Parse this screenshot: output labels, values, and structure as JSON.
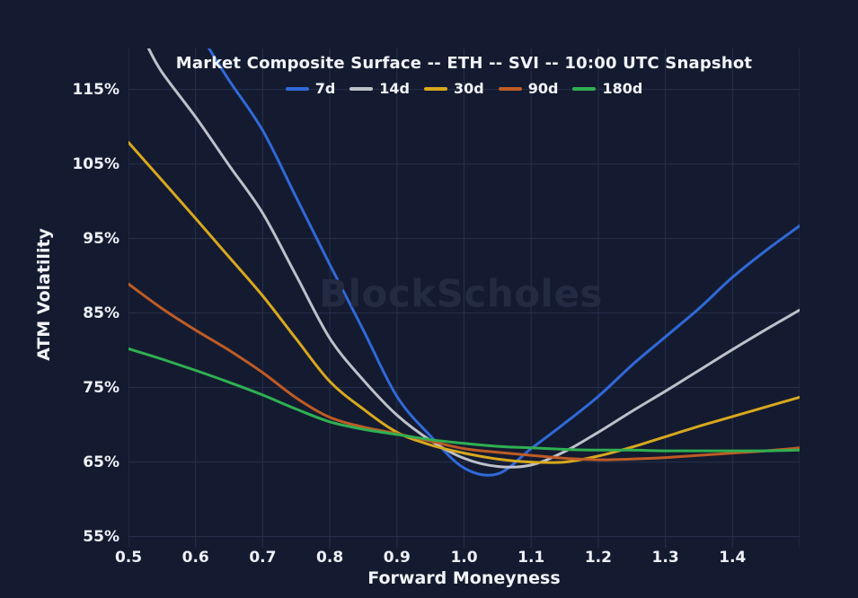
{
  "watermark": "BlockScholes",
  "colors": {
    "background": "#141b30",
    "grid": "#26304b",
    "tick_mark": "#3a4563",
    "text": "#f2f4f8",
    "watermark": "#222b41"
  },
  "chart_data": {
    "type": "line",
    "title": "Market Composite Surface -- ETH -- SVI -- 10:00 UTC Snapshot",
    "xlabel": "Forward Moneyness",
    "ylabel": "ATM Volatility",
    "xlim": [
      0.5,
      1.5
    ],
    "ylim": [
      53.5,
      120.5
    ],
    "grid": true,
    "legend_position": "top-center",
    "x_grid": [
      0.5,
      0.6,
      0.7,
      0.8,
      0.9,
      1.0,
      1.1,
      1.2,
      1.3,
      1.4,
      1.5
    ],
    "x_ticks": [
      {
        "value": 0.5,
        "label": "0.5"
      },
      {
        "value": 0.6,
        "label": "0.6"
      },
      {
        "value": 0.7,
        "label": "0.7"
      },
      {
        "value": 0.8,
        "label": "0.8"
      },
      {
        "value": 0.9,
        "label": "0.9"
      },
      {
        "value": 1.0,
        "label": "1.0"
      },
      {
        "value": 1.1,
        "label": "1.1"
      },
      {
        "value": 1.2,
        "label": "1.2"
      },
      {
        "value": 1.3,
        "label": "1.3"
      },
      {
        "value": 1.4,
        "label": "1.4"
      }
    ],
    "y_ticks": [
      {
        "value": 115,
        "label": "115%"
      },
      {
        "value": 105,
        "label": "105%"
      },
      {
        "value": 95,
        "label": "95%"
      },
      {
        "value": 85,
        "label": "85%"
      },
      {
        "value": 75,
        "label": "75%"
      },
      {
        "value": 65,
        "label": "65%"
      },
      {
        "value": 55,
        "label": "55%"
      }
    ],
    "series": [
      {
        "name": "7d",
        "color": "#3069d9",
        "points": [
          [
            0.62,
            120.5
          ],
          [
            0.65,
            116.2
          ],
          [
            0.7,
            109.5
          ],
          [
            0.75,
            100.5
          ],
          [
            0.8,
            91.5
          ],
          [
            0.85,
            82.7
          ],
          [
            0.9,
            73.8
          ],
          [
            0.95,
            68.5
          ],
          [
            1.0,
            64.2
          ],
          [
            1.05,
            63.4
          ],
          [
            1.1,
            66.8
          ],
          [
            1.15,
            70.2
          ],
          [
            1.2,
            73.8
          ],
          [
            1.25,
            78.0
          ],
          [
            1.3,
            81.8
          ],
          [
            1.35,
            85.6
          ],
          [
            1.4,
            89.8
          ],
          [
            1.45,
            93.4
          ],
          [
            1.5,
            96.7
          ]
        ]
      },
      {
        "name": "14d",
        "color": "#bdc1c9",
        "points": [
          [
            0.53,
            120.5
          ],
          [
            0.55,
            117.3
          ],
          [
            0.6,
            111.3
          ],
          [
            0.65,
            104.8
          ],
          [
            0.7,
            98.4
          ],
          [
            0.75,
            90.0
          ],
          [
            0.8,
            81.6
          ],
          [
            0.85,
            76.0
          ],
          [
            0.9,
            71.3
          ],
          [
            0.95,
            67.9
          ],
          [
            1.0,
            65.5
          ],
          [
            1.05,
            64.4
          ],
          [
            1.1,
            64.6
          ],
          [
            1.15,
            66.4
          ],
          [
            1.2,
            69.0
          ],
          [
            1.25,
            71.8
          ],
          [
            1.3,
            74.5
          ],
          [
            1.35,
            77.3
          ],
          [
            1.4,
            80.1
          ],
          [
            1.45,
            82.8
          ],
          [
            1.5,
            85.4
          ]
        ]
      },
      {
        "name": "30d",
        "color": "#d8a81e",
        "points": [
          [
            0.5,
            107.9
          ],
          [
            0.55,
            102.8
          ],
          [
            0.6,
            97.7
          ],
          [
            0.65,
            92.5
          ],
          [
            0.7,
            87.3
          ],
          [
            0.75,
            81.5
          ],
          [
            0.8,
            75.8
          ],
          [
            0.85,
            72.1
          ],
          [
            0.9,
            69.0
          ],
          [
            0.95,
            67.3
          ],
          [
            1.0,
            66.2
          ],
          [
            1.05,
            65.4
          ],
          [
            1.1,
            65.0
          ],
          [
            1.15,
            65.0
          ],
          [
            1.2,
            65.8
          ],
          [
            1.25,
            67.0
          ],
          [
            1.3,
            68.4
          ],
          [
            1.35,
            69.8
          ],
          [
            1.4,
            71.1
          ],
          [
            1.45,
            72.4
          ],
          [
            1.5,
            73.7
          ]
        ]
      },
      {
        "name": "90d",
        "color": "#bf5b24",
        "points": [
          [
            0.5,
            88.9
          ],
          [
            0.55,
            85.6
          ],
          [
            0.6,
            82.7
          ],
          [
            0.65,
            80.0
          ],
          [
            0.7,
            77.0
          ],
          [
            0.75,
            73.6
          ],
          [
            0.8,
            71.0
          ],
          [
            0.85,
            69.7
          ],
          [
            0.9,
            68.8
          ],
          [
            0.95,
            67.8
          ],
          [
            1.0,
            66.8
          ],
          [
            1.05,
            66.3
          ],
          [
            1.1,
            65.9
          ],
          [
            1.15,
            65.5
          ],
          [
            1.2,
            65.3
          ],
          [
            1.25,
            65.4
          ],
          [
            1.3,
            65.6
          ],
          [
            1.35,
            65.9
          ],
          [
            1.4,
            66.2
          ],
          [
            1.45,
            66.5
          ],
          [
            1.5,
            66.9
          ]
        ]
      },
      {
        "name": "180d",
        "color": "#2fb052",
        "points": [
          [
            0.5,
            80.2
          ],
          [
            0.55,
            78.8
          ],
          [
            0.6,
            77.3
          ],
          [
            0.65,
            75.7
          ],
          [
            0.7,
            74.0
          ],
          [
            0.75,
            72.1
          ],
          [
            0.8,
            70.4
          ],
          [
            0.85,
            69.4
          ],
          [
            0.9,
            68.7
          ],
          [
            0.95,
            68.0
          ],
          [
            1.0,
            67.5
          ],
          [
            1.05,
            67.1
          ],
          [
            1.1,
            66.9
          ],
          [
            1.15,
            66.7
          ],
          [
            1.2,
            66.6
          ],
          [
            1.25,
            66.6
          ],
          [
            1.3,
            66.5
          ],
          [
            1.35,
            66.5
          ],
          [
            1.4,
            66.5
          ],
          [
            1.45,
            66.5
          ],
          [
            1.5,
            66.6
          ]
        ]
      }
    ]
  }
}
